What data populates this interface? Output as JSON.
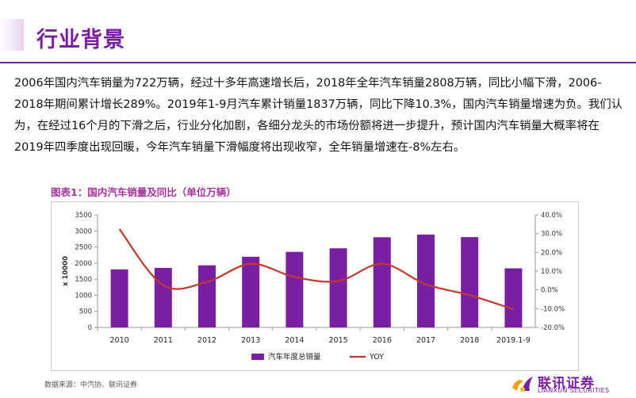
{
  "page": {
    "title": "行业背景",
    "paragraph": "2006年国内汽车销量为722万辆，经过十多年高速增长后，2018年全年汽车销量2808万辆，同比小幅下滑，2006-2018年期间累计增长289%。2019年1-9月汽车累计销量1837万辆，同比下降10.3%，国内汽车销量增速为负。我们认为，在经过16个月的下滑之后，行业分化加剧，各细分龙头的市场份额将进一步提升，预计国内汽车销量大概率将在2019年四季度出现回暖，今年汽车销量下滑幅度将出现收窄，全年销量增速在-8%左右。",
    "chart_caption": "图表1：国内汽车销量及同比（单位万辆）",
    "source": "数据来源：中汽协、联讯证券",
    "logo_cn": "联讯证券",
    "logo_en": "LIANXUN SECURITIES"
  },
  "colors": {
    "brand": "#7a1fa2",
    "bar": "#7a1fa2",
    "line": "#c0392b",
    "caption": "#a8329f"
  },
  "chart_data": {
    "type": "bar",
    "categories": [
      "2010",
      "2011",
      "2012",
      "2013",
      "2014",
      "2015",
      "2016",
      "2017",
      "2018",
      "2019.1-9"
    ],
    "series": [
      {
        "name": "汽车年度总销量",
        "type": "bar",
        "axis": "left",
        "values": [
          1806,
          1851,
          1931,
          2198,
          2349,
          2460,
          2803,
          2888,
          2808,
          1837
        ]
      },
      {
        "name": "YOY",
        "type": "line",
        "axis": "right",
        "values": [
          32.4,
          2.5,
          4.3,
          13.9,
          6.9,
          4.7,
          13.9,
          3.0,
          -2.8,
          -10.3
        ]
      }
    ],
    "ylabel": "x 10000",
    "ylim": [
      0,
      3500
    ],
    "yticks": [
      "3500",
      "3000",
      "2500",
      "2000",
      "1500",
      "1000",
      "500",
      "0"
    ],
    "y2lim": [
      -20,
      40
    ],
    "y2ticks": [
      "40.0%",
      "30.0%",
      "20.0%",
      "10.0%",
      "0.0%",
      "-10.0%",
      "-20.0%"
    ],
    "legend_position": "bottom",
    "grid": false
  }
}
